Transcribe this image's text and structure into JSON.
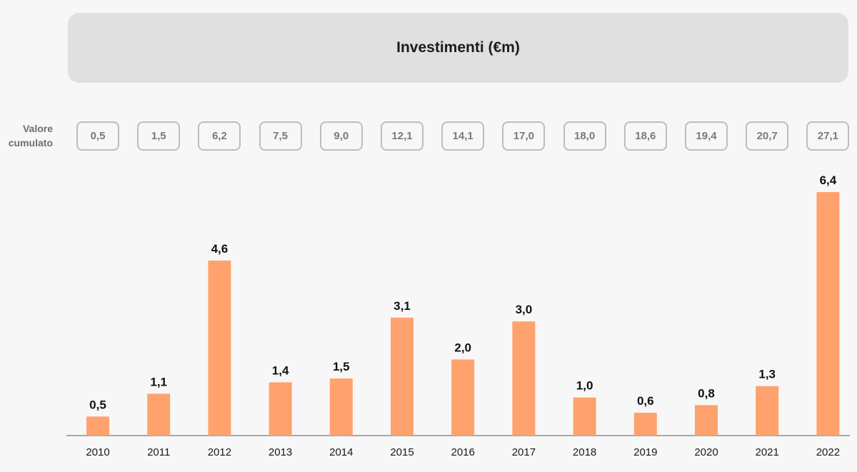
{
  "chart_data": {
    "type": "bar",
    "title": "Investimenti (€m)",
    "categories": [
      "2010",
      "2011",
      "2012",
      "2013",
      "2014",
      "2015",
      "2016",
      "2017",
      "2018",
      "2019",
      "2020",
      "2021",
      "2022"
    ],
    "values": [
      0.5,
      1.1,
      4.6,
      1.4,
      1.5,
      3.1,
      2.0,
      3.0,
      1.0,
      0.6,
      0.8,
      1.3,
      6.4
    ],
    "value_labels": [
      "0,5",
      "1,1",
      "4,6",
      "1,4",
      "1,5",
      "3,1",
      "2,0",
      "3,0",
      "1,0",
      "0,6",
      "0,8",
      "1,3",
      "6,4"
    ],
    "cumulative_label_line1": "Valore",
    "cumulative_label_line2": "cumulato",
    "cumulative_labels": [
      "0,5",
      "1,5",
      "6,2",
      "7,5",
      "9,0",
      "12,1",
      "14,1",
      "17,0",
      "18,0",
      "18,6",
      "19,4",
      "20,7",
      "27,1"
    ],
    "xlabel": "",
    "ylabel": "",
    "ylim": [
      0,
      6.4
    ],
    "grid": false,
    "colors": {
      "bar": "#ffa26d",
      "axis": "#7a7a7a"
    }
  }
}
